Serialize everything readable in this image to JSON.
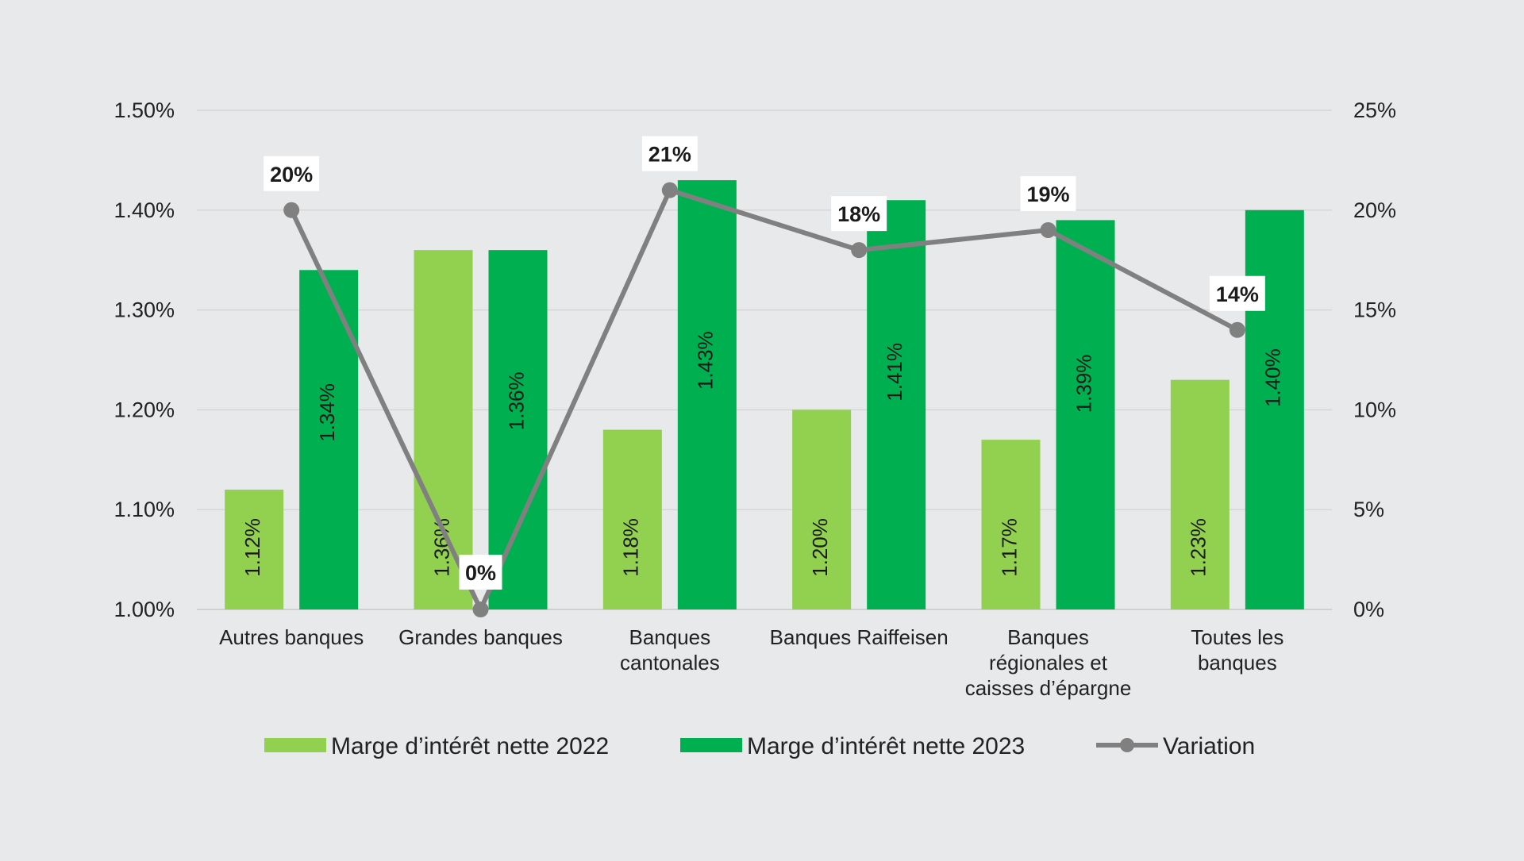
{
  "chart_data": {
    "type": "bar",
    "title": "",
    "categories": [
      [
        "Autres banques"
      ],
      [
        "Grandes banques"
      ],
      [
        "Banques",
        "cantonales"
      ],
      [
        "Banques Raiffeisen"
      ],
      [
        "Banques",
        "régionales et",
        "caisses d’épargne"
      ],
      [
        "Toutes les",
        "banques"
      ]
    ],
    "series": [
      {
        "name": "Marge d’intérêt nette 2022",
        "type": "bar",
        "axis": "left",
        "color": "#92d050",
        "values": [
          1.12,
          1.36,
          1.18,
          1.2,
          1.17,
          1.23
        ],
        "labels": [
          "1.12%",
          "1.36%",
          "1.18%",
          "1.20%",
          "1.17%",
          "1.23%"
        ]
      },
      {
        "name": "Marge d’intérêt nette 2023",
        "type": "bar",
        "axis": "left",
        "color": "#00b050",
        "values": [
          1.34,
          1.36,
          1.43,
          1.41,
          1.39,
          1.4
        ],
        "labels": [
          "1.34%",
          "1.36%",
          "1.43%",
          "1.41%",
          "1.39%",
          "1.40%"
        ]
      },
      {
        "name": "Variation",
        "type": "line",
        "axis": "right",
        "color": "#808080",
        "values": [
          20,
          0,
          21,
          18,
          19,
          14
        ],
        "labels": [
          "20%",
          "0%",
          "21%",
          "18%",
          "19%",
          "14%"
        ]
      }
    ],
    "y_left": {
      "min": 1.0,
      "max": 1.5,
      "ticks": [
        "1.00%",
        "1.10%",
        "1.20%",
        "1.30%",
        "1.40%",
        "1.50%"
      ]
    },
    "y_right": {
      "min": 0,
      "max": 25,
      "ticks": [
        "0%",
        "5%",
        "10%",
        "15%",
        "20%",
        "25%"
      ]
    },
    "grid": true,
    "legend_position": "bottom"
  }
}
